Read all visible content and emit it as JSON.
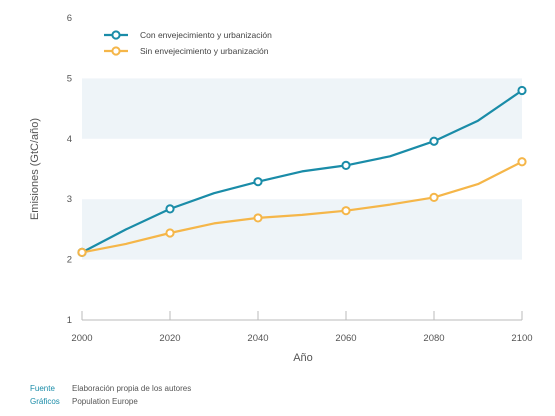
{
  "chart_data": {
    "type": "line",
    "x": [
      2000,
      2010,
      2020,
      2030,
      2040,
      2050,
      2060,
      2070,
      2080,
      2090,
      2100
    ],
    "series": [
      {
        "name": "Con envejecimiento y urbanización",
        "color": "#1a8ca8",
        "values": [
          2.12,
          2.5,
          2.84,
          3.1,
          3.29,
          3.46,
          3.56,
          3.71,
          3.96,
          4.3,
          4.8
        ],
        "marker_years": [
          2000,
          2020,
          2040,
          2060,
          2080,
          2100
        ]
      },
      {
        "name": "Sin envejecimiento y urbanización",
        "color": "#f5b649",
        "values": [
          2.12,
          2.26,
          2.44,
          2.6,
          2.69,
          2.74,
          2.81,
          2.91,
          3.03,
          3.25,
          3.62
        ],
        "marker_years": [
          2000,
          2020,
          2040,
          2060,
          2080,
          2100
        ]
      }
    ],
    "xlabel": "Año",
    "ylabel": "Emisiones (GtC/año)",
    "xlim": [
      2000,
      2100
    ],
    "ylim": [
      1,
      6
    ],
    "x_ticks": [
      2000,
      2020,
      2040,
      2060,
      2080,
      2100
    ],
    "y_ticks": [
      1,
      2,
      3,
      4,
      5,
      6
    ],
    "band_color": "#eef4f8",
    "legend_position": "top-left",
    "grid": false
  },
  "footer": {
    "source_key": "Fuente",
    "source_value": "Elaboración propia de los autores",
    "graphics_key": "Gráficos",
    "graphics_value": "Population Europe"
  }
}
